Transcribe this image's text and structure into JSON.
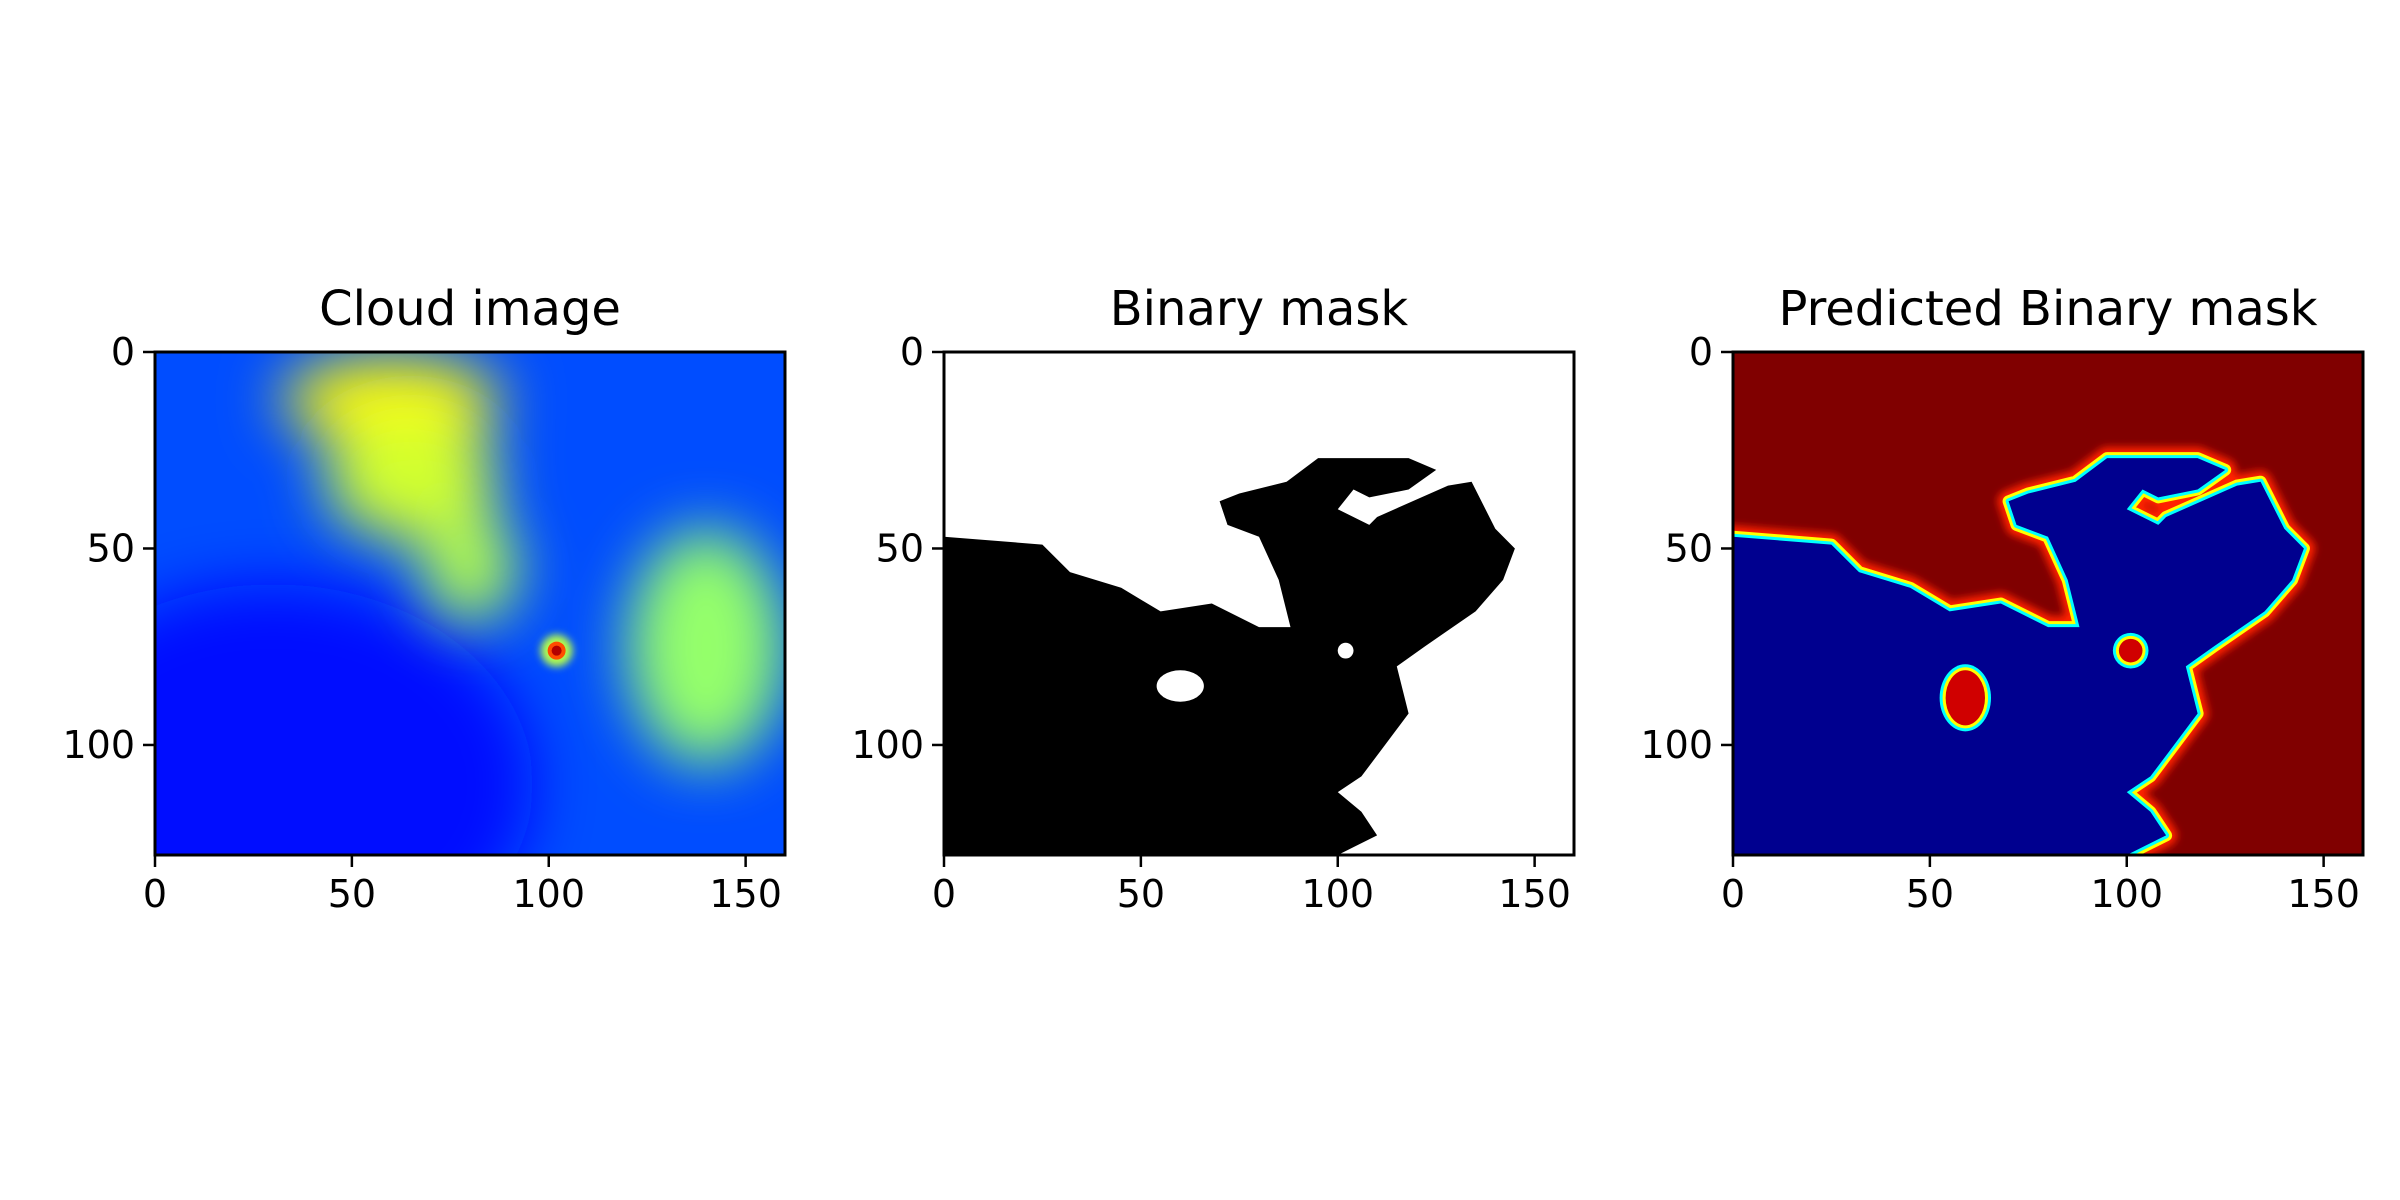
{
  "figure": {
    "background": "#ffffff",
    "image_size": {
      "width": 160,
      "height": 128
    },
    "x_ticks": [
      0,
      50,
      100,
      150
    ],
    "y_ticks": [
      0,
      50,
      100
    ]
  },
  "chart_data": [
    {
      "type": "heatmap",
      "title": "Cloud image",
      "colormap": "jet",
      "xlim": [
        0,
        160
      ],
      "ylim": [
        128,
        0
      ],
      "x_ticks": [
        "0",
        "50",
        "100",
        "150"
      ],
      "y_ticks": [
        "0",
        "50",
        "100"
      ],
      "features": [
        {
          "kind": "cloud",
          "level": 0.63,
          "cx": 60,
          "cy": 12,
          "rx": 28,
          "ry": 11
        },
        {
          "kind": "cloud",
          "level": 0.58,
          "cx": 65,
          "cy": 32,
          "rx": 22,
          "ry": 16
        },
        {
          "kind": "cloud",
          "level": 0.55,
          "cx": 80,
          "cy": 55,
          "rx": 12,
          "ry": 14
        },
        {
          "kind": "cloud",
          "level": 0.52,
          "cx": 140,
          "cy": 75,
          "rx": 20,
          "ry": 30
        },
        {
          "kind": "hotspot",
          "level": 0.95,
          "cx": 102,
          "cy": 76,
          "rx": 3,
          "ry": 3
        }
      ]
    },
    {
      "type": "heatmap",
      "title": "Binary mask",
      "colormap": "gray",
      "xlim": [
        0,
        160
      ],
      "ylim": [
        128,
        0
      ],
      "x_ticks": [
        "0",
        "50",
        "100",
        "150"
      ],
      "y_ticks": [
        "0",
        "50",
        "100"
      ],
      "region_polygon": [
        [
          0,
          47
        ],
        [
          25,
          49
        ],
        [
          32,
          56
        ],
        [
          45,
          60
        ],
        [
          55,
          66
        ],
        [
          68,
          64
        ],
        [
          80,
          70
        ],
        [
          88,
          70
        ],
        [
          85,
          58
        ],
        [
          80,
          47
        ],
        [
          72,
          44
        ],
        [
          70,
          38
        ],
        [
          75,
          36
        ],
        [
          87,
          33
        ],
        [
          95,
          27
        ],
        [
          118,
          27
        ],
        [
          125,
          30
        ],
        [
          118,
          35
        ],
        [
          108,
          37
        ],
        [
          104,
          35
        ],
        [
          100,
          40
        ],
        [
          108,
          44
        ],
        [
          110,
          42
        ],
        [
          128,
          34
        ],
        [
          134,
          33
        ],
        [
          140,
          45
        ],
        [
          145,
          50
        ],
        [
          142,
          58
        ],
        [
          135,
          66
        ],
        [
          122,
          75
        ],
        [
          115,
          80
        ],
        [
          118,
          92
        ],
        [
          112,
          100
        ],
        [
          106,
          108
        ],
        [
          100,
          112
        ],
        [
          106,
          117
        ],
        [
          110,
          123
        ],
        [
          104,
          126
        ],
        [
          100,
          128
        ],
        [
          0,
          128
        ]
      ],
      "holes": [
        {
          "cx": 60,
          "cy": 85,
          "rx": 6,
          "ry": 4
        },
        {
          "cx": 102,
          "cy": 76,
          "rx": 2,
          "ry": 2
        }
      ]
    },
    {
      "type": "heatmap",
      "title": "Predicted Binary mask",
      "colormap": "jet",
      "xlim": [
        0,
        160
      ],
      "ylim": [
        128,
        0
      ],
      "x_ticks": [
        "0",
        "50",
        "100",
        "150"
      ],
      "y_ticks": [
        "0",
        "50",
        "100"
      ],
      "region_polygon": [
        [
          0,
          47
        ],
        [
          25,
          49
        ],
        [
          32,
          56
        ],
        [
          45,
          60
        ],
        [
          55,
          66
        ],
        [
          68,
          64
        ],
        [
          80,
          70
        ],
        [
          88,
          70
        ],
        [
          85,
          58
        ],
        [
          80,
          47
        ],
        [
          72,
          44
        ],
        [
          70,
          38
        ],
        [
          75,
          36
        ],
        [
          87,
          33
        ],
        [
          95,
          27
        ],
        [
          118,
          27
        ],
        [
          125,
          30
        ],
        [
          118,
          35
        ],
        [
          108,
          37
        ],
        [
          104,
          35
        ],
        [
          100,
          40
        ],
        [
          108,
          44
        ],
        [
          110,
          42
        ],
        [
          128,
          34
        ],
        [
          134,
          33
        ],
        [
          140,
          45
        ],
        [
          145,
          50
        ],
        [
          142,
          58
        ],
        [
          135,
          66
        ],
        [
          122,
          75
        ],
        [
          115,
          80
        ],
        [
          118,
          92
        ],
        [
          112,
          100
        ],
        [
          106,
          108
        ],
        [
          100,
          112
        ],
        [
          106,
          117
        ],
        [
          110,
          123
        ],
        [
          104,
          126
        ],
        [
          100,
          128
        ],
        [
          0,
          128
        ]
      ],
      "holes": [
        {
          "cx": 59,
          "cy": 88,
          "rx": 5,
          "ry": 7
        },
        {
          "cx": 101,
          "cy": 76,
          "rx": 3,
          "ry": 3
        }
      ],
      "inside_color": "#00008f",
      "outside_color": "#800000",
      "edge_colors": [
        "#ffff00",
        "#00ffff"
      ]
    }
  ]
}
